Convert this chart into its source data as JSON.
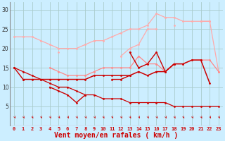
{
  "background_color": "#cceeff",
  "grid_color": "#aacccc",
  "xlabel": "Vent moyen/en rafales ( km/h )",
  "xlabel_color": "#cc0000",
  "xlabel_fontsize": 7,
  "xtick_color": "#cc0000",
  "ytick_color": "#333333",
  "ylim": [
    0,
    32
  ],
  "yticks": [
    5,
    10,
    15,
    20,
    25,
    30
  ],
  "xlim": [
    -0.5,
    23.5
  ],
  "series": [
    {
      "color": "#ffaaaa",
      "lw": 0.9,
      "ms": 2.0,
      "y": [
        23,
        23,
        23,
        22,
        21,
        20,
        20,
        20,
        21,
        22,
        22,
        23,
        24,
        25,
        25,
        26,
        29,
        28,
        28,
        27,
        27,
        27,
        27,
        null
      ]
    },
    {
      "color": "#ffaaaa",
      "lw": 0.9,
      "ms": 2.0,
      "y": [
        null,
        null,
        null,
        null,
        null,
        19,
        null,
        null,
        null,
        null,
        null,
        null,
        18,
        20,
        21,
        25,
        25,
        null,
        26,
        null,
        null,
        27,
        27,
        14
      ]
    },
    {
      "color": "#ff8888",
      "lw": 0.9,
      "ms": 2.0,
      "y": [
        15,
        null,
        null,
        null,
        15,
        14,
        13,
        13,
        13,
        14,
        15,
        15,
        15,
        15,
        18,
        16,
        16,
        14,
        16,
        16,
        17,
        17,
        17,
        14
      ]
    },
    {
      "color": "#cc0000",
      "lw": 1.1,
      "ms": 2.0,
      "y": [
        null,
        12,
        12,
        12,
        12,
        12,
        12,
        12,
        12,
        13,
        13,
        13,
        13,
        13,
        14,
        13,
        14,
        14,
        16,
        16,
        17,
        17,
        11,
        null
      ]
    },
    {
      "color": "#cc0000",
      "lw": 1.0,
      "ms": 2.0,
      "y": [
        null,
        null,
        null,
        null,
        10,
        9,
        8,
        6,
        8,
        null,
        null,
        12,
        12,
        13,
        null,
        null,
        null,
        null,
        null,
        null,
        null,
        null,
        null,
        null
      ]
    },
    {
      "color": "#cc0000",
      "lw": 0.9,
      "ms": 2.0,
      "y": [
        15,
        14,
        13,
        12,
        11,
        10,
        10,
        9,
        8,
        8,
        7,
        7,
        7,
        6,
        6,
        6,
        6,
        6,
        5,
        5,
        5,
        5,
        5,
        5
      ]
    },
    {
      "color": "#cc0000",
      "lw": 1.0,
      "ms": 2.0,
      "y": [
        15,
        12,
        null,
        null,
        null,
        null,
        null,
        null,
        null,
        null,
        null,
        null,
        null,
        null,
        null,
        null,
        null,
        null,
        null,
        null,
        null,
        null,
        null,
        null
      ]
    },
    {
      "color": "#cc0000",
      "lw": 1.0,
      "ms": 2.0,
      "y": [
        null,
        null,
        null,
        null,
        null,
        null,
        null,
        null,
        null,
        null,
        null,
        null,
        null,
        19,
        15,
        16,
        19,
        14,
        16,
        null,
        null,
        null,
        null,
        null
      ]
    }
  ]
}
